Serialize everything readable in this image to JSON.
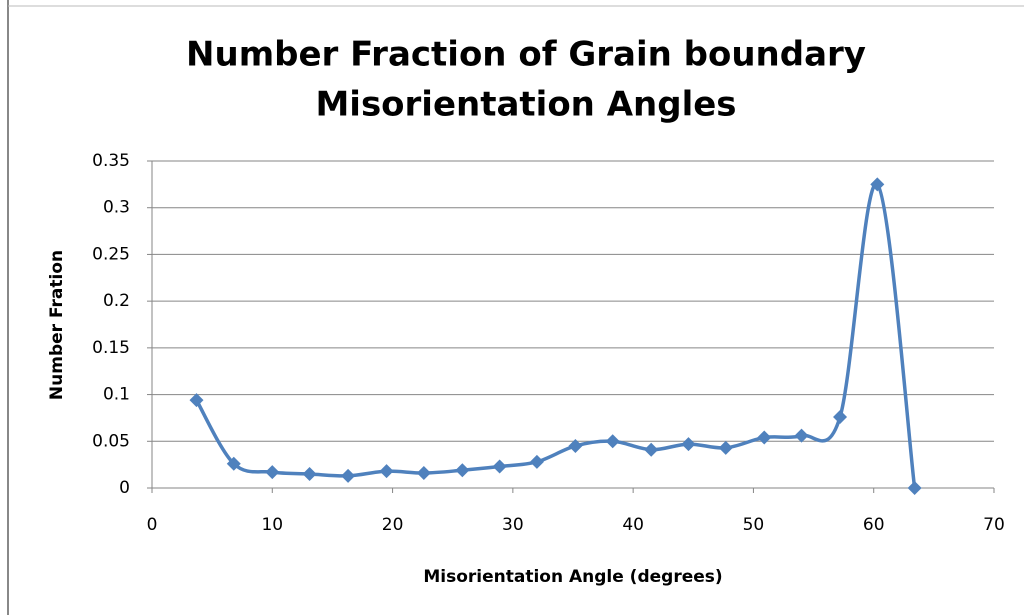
{
  "chart_data": {
    "type": "scatter",
    "title": [
      "Number Fraction of Grain boundary",
      "Misorientation Angles"
    ],
    "x_label": "Misorientation Angle (degrees)",
    "y_label": "Number Fration",
    "x": [
      3.7,
      6.8,
      10.0,
      13.1,
      16.3,
      19.5,
      22.6,
      25.8,
      28.9,
      32.0,
      35.2,
      38.3,
      41.5,
      44.6,
      47.7,
      50.9,
      54.0,
      57.2,
      60.3,
      63.4
    ],
    "series": [
      {
        "color": "#4f81bd",
        "values": [
          0.094,
          0.026,
          0.017,
          0.015,
          0.013,
          0.018,
          0.016,
          0.019,
          0.023,
          0.028,
          0.045,
          0.05,
          0.041,
          0.047,
          0.043,
          0.054,
          0.056,
          0.076,
          0.325,
          0
        ]
      }
    ],
    "xlim": [
      0,
      70
    ],
    "xticks": [
      0,
      10,
      20,
      30,
      40,
      50,
      60,
      70
    ],
    "ylim": [
      0,
      0.35
    ],
    "yticks": [
      0,
      0.05,
      0.1,
      0.15,
      0.2,
      0.25,
      0.3,
      0.35
    ],
    "grid": true,
    "smooth": true
  }
}
